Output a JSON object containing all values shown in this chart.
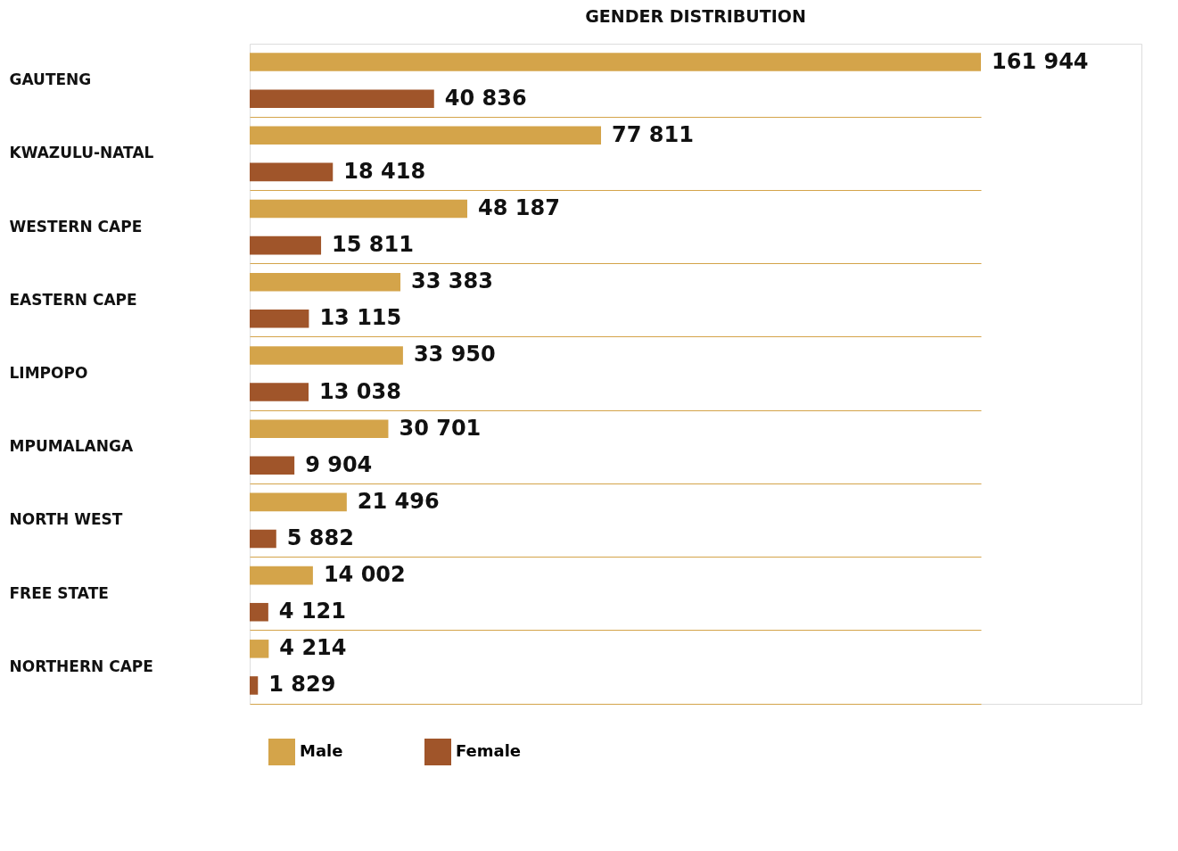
{
  "chart_data": {
    "type": "bar",
    "orientation": "horizontal",
    "title": "GENDER DISTRIBUTION",
    "categories": [
      "GAUTENG",
      "KWAZULU-NATAL",
      "WESTERN CAPE",
      "EASTERN CAPE",
      "LIMPOPO",
      "MPUMALANGA",
      "NORTH WEST",
      "FREE STATE",
      "NORTHERN CAPE"
    ],
    "series": [
      {
        "name": "Male",
        "color": "#d4a44a",
        "values": [
          161944,
          77811,
          48187,
          33383,
          33950,
          30701,
          21496,
          14002,
          4214
        ],
        "value_labels": [
          "161 944",
          "77 811",
          "48 187",
          "33 383",
          "33 950",
          "30 701",
          "21 496",
          "14 002",
          "4 214"
        ]
      },
      {
        "name": "Female",
        "color": "#a0552a",
        "values": [
          40836,
          18418,
          15811,
          13115,
          13038,
          9904,
          5882,
          4121,
          1829
        ],
        "value_labels": [
          "40 836",
          "18 418",
          "15 811",
          "13 115",
          "13 038",
          "9 904",
          "5 882",
          "4 121",
          "1 829"
        ]
      }
    ],
    "grid": "y",
    "legend": "bottom"
  }
}
